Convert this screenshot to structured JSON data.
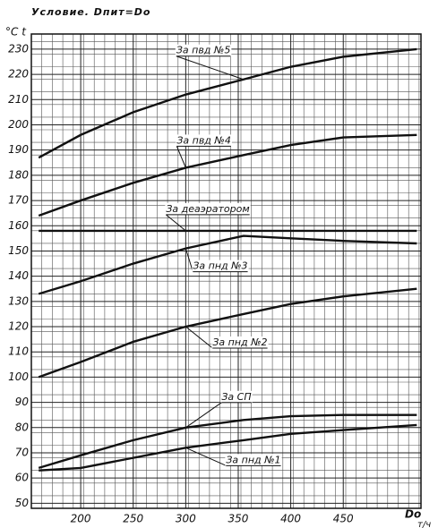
{
  "chart_data": {
    "type": "line",
    "title": "Условие. Dпит=Do",
    "y_label": "°C  t",
    "x_label": "Do",
    "x_unit": "т/ч",
    "x": [
      160,
      200,
      250,
      300,
      355,
      400,
      450,
      520
    ],
    "series": [
      {
        "name": "За пвд №5",
        "color": "#111111",
        "values": [
          187,
          196,
          205,
          212,
          218,
          223,
          227,
          230
        ]
      },
      {
        "name": "За пвд №4",
        "color": "#111111",
        "values": [
          164,
          170,
          177,
          183,
          188,
          192,
          195,
          196
        ]
      },
      {
        "name": "За деаэратором",
        "color": "#111111",
        "values": [
          158,
          158,
          158,
          158,
          158,
          158,
          158,
          158
        ]
      },
      {
        "name": "За пнд №3",
        "color": "#111111",
        "values": [
          133,
          138,
          145,
          151,
          156,
          155,
          154,
          153
        ]
      },
      {
        "name": "За пнд №2",
        "color": "#111111",
        "values": [
          100,
          106,
          114,
          120,
          125,
          129,
          132,
          135
        ]
      },
      {
        "name": "За СП",
        "color": "#111111",
        "values": [
          64,
          69,
          75,
          80,
          83,
          84.5,
          85,
          85
        ]
      },
      {
        "name": "За пнд №1",
        "color": "#111111",
        "values": [
          63,
          64,
          68,
          72,
          75,
          77.5,
          79,
          81
        ]
      }
    ],
    "xlim": [
      153,
      524
    ],
    "ylim": [
      48,
      236
    ],
    "xticks": [
      200,
      250,
      300,
      350,
      400,
      450
    ],
    "yticks": [
      50,
      60,
      70,
      80,
      90,
      100,
      110,
      120,
      130,
      140,
      150,
      160,
      170,
      180,
      190,
      200,
      210,
      220,
      230
    ],
    "grid": true
  }
}
